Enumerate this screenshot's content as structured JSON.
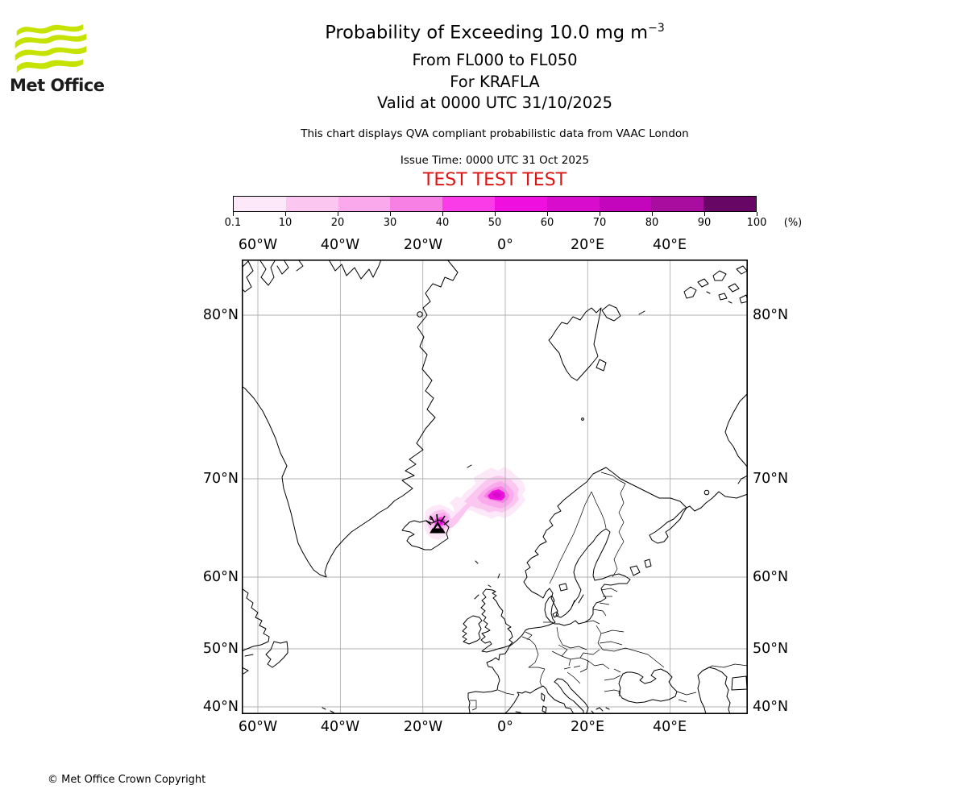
{
  "header": {
    "logo_text": "Met Office",
    "logo_green": "#c6e200",
    "title_prefix": "Probability of Exceeding 10.0 mg m",
    "title_exponent": "−3",
    "subtitle_flight_levels": "From FL000 to FL050",
    "subtitle_volcano": "For KRAFLA",
    "subtitle_valid": "Valid at 0000 UTC 31/10/2025",
    "qva_note": "This chart displays QVA compliant probabilistic data from VAAC London",
    "issue_time": "Issue Time: 0000 UTC 31 Oct 2025",
    "test_banner": "TEST TEST TEST",
    "test_color": "#dc1414"
  },
  "colorbar": {
    "unit": "(%)",
    "ticks": [
      "0.1",
      "10",
      "20",
      "30",
      "40",
      "50",
      "60",
      "70",
      "80",
      "90",
      "100"
    ],
    "colors": [
      "#fce8f8",
      "#fbc7f1",
      "#f9a9ec",
      "#f780e4",
      "#f93ce8",
      "#ef0fdf",
      "#d80ccd",
      "#c306bb",
      "#a80da0",
      "#670664"
    ]
  },
  "map": {
    "grid_color": "#b0b0b0",
    "top_labels": [
      "60°W",
      "40°W",
      "20°W",
      "0°",
      "20°E",
      "40°E"
    ],
    "bottom_labels": [
      "60°W",
      "40°W",
      "20°W",
      "0°",
      "20°E",
      "40°E"
    ],
    "left_labels": [
      "80°N",
      "70°N",
      "60°N",
      "50°N",
      "40°N"
    ],
    "right_labels": [
      "80°N",
      "70°N",
      "60°N",
      "50°N",
      "40°N"
    ]
  },
  "chart_data": {
    "type": "probability_map",
    "quantity": "Probability of Exceeding 10.0 mg m-3 volcanic ash concentration",
    "flight_levels": "FL000 to FL050",
    "valid_time": "0000 UTC 31/10/2025",
    "issue_time": "0000 UTC 31 Oct 2025",
    "source": "QVA compliant probabilistic data from VAAC London",
    "projection": "mercator",
    "lon_range_deg": [
      -63.9,
      58.9
    ],
    "lat_range_deg": [
      39.5,
      82.1
    ],
    "grid_lon_deg": [
      -60,
      -40,
      -20,
      0,
      20,
      40
    ],
    "grid_lat_deg": [
      80,
      70,
      60,
      50,
      40
    ],
    "probability_bands_percent": [
      0.1,
      10,
      20,
      30,
      40,
      50,
      60,
      70,
      80,
      90,
      100
    ],
    "volcano": {
      "name": "KRAFLA",
      "lon_deg": -16.8,
      "lat_deg": 65.7
    },
    "plume": {
      "description": "Ash exceedance probability plume over NE Iceland trailing northeast to a maximum northeast of Iceland",
      "core_center": {
        "lon_deg": -2.0,
        "lat_deg": 68.7
      },
      "core_max_band_percent": "60-70",
      "extent": {
        "lon_min_deg": -18,
        "lon_max_deg": 5,
        "lat_min_deg": 64.5,
        "lat_max_deg": 70.5
      }
    }
  },
  "footer": {
    "copyright": "© Met Office Crown Copyright"
  }
}
